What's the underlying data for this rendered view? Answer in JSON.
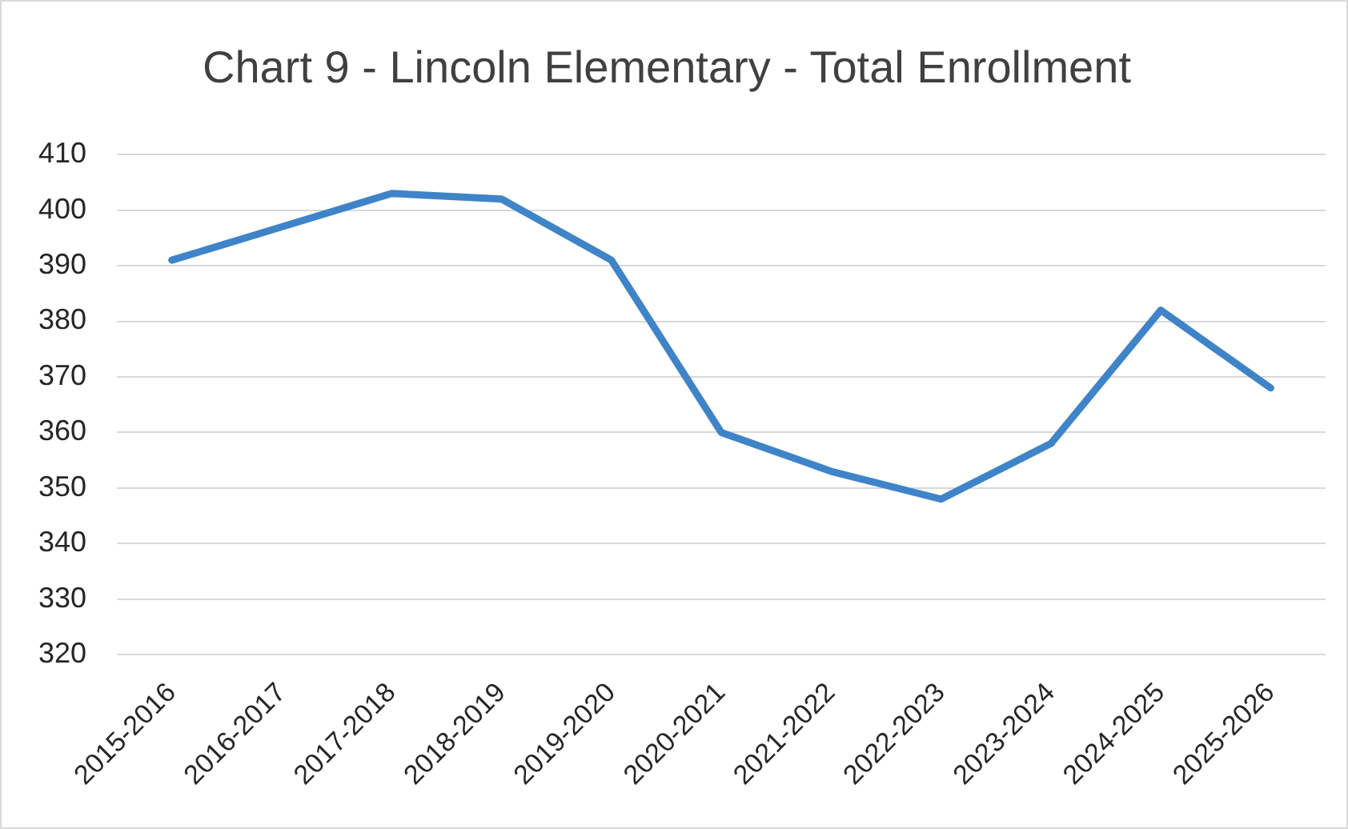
{
  "chart_data": {
    "type": "line",
    "title": "Chart 9 - Lincoln Elementary - Total Enrollment",
    "categories": [
      "2015-2016",
      "2016-2017",
      "2017-2018",
      "2018-2019",
      "2019-2020",
      "2020-2021",
      "2021-2022",
      "2022-2023",
      "2023-2024",
      "2024-2025",
      "2025-2026"
    ],
    "series": [
      {
        "color": "#3f84c8",
        "values": [
          391,
          397,
          403,
          402,
          391,
          360,
          353,
          348,
          358,
          382,
          368
        ]
      }
    ],
    "ylim": [
      320,
      410
    ],
    "yticks": [
      320,
      330,
      340,
      350,
      360,
      370,
      380,
      390,
      400,
      410
    ],
    "grid": "y"
  }
}
